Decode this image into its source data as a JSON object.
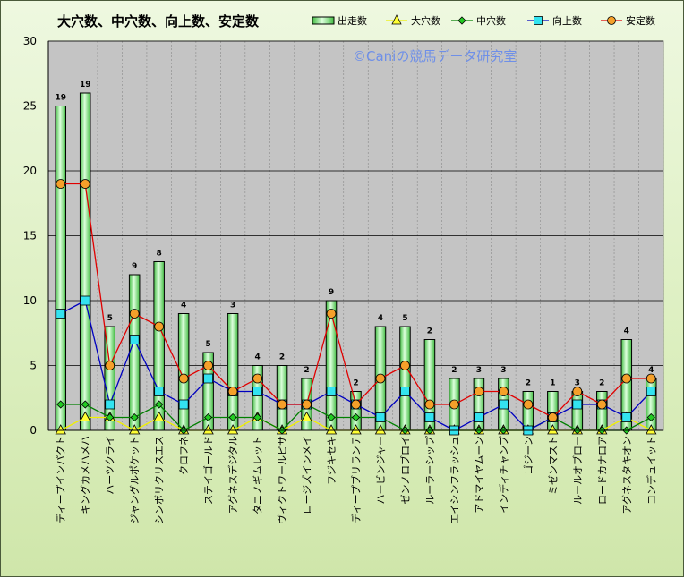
{
  "chart_data": {
    "type": "bar",
    "title": "大穴数、中穴数、向上数、安定数",
    "watermark": "©Caniの競馬データ研究室",
    "ylim": [
      0,
      30
    ],
    "yticks": [
      0,
      5,
      10,
      15,
      20,
      25,
      30
    ],
    "grid": true,
    "legend_position": "top-right",
    "categories": [
      "ディープインパクト",
      "キングカメハメハ",
      "ハーツクライ",
      "ジャングルポケット",
      "シンボリクリスエス",
      "クロフネ",
      "ステイゴールド",
      "アグネスデジタル",
      "タニノギムレット",
      "ヴィクトワールピサ",
      "ロージズインメイ",
      "フジキセキ",
      "ディープブリランテ",
      "ハービンジャー",
      "ゼンノロブロイ",
      "ルーラーシップ",
      "エイシンフラッシュ",
      "アドマイヤムーン",
      "インディチャンプ",
      "ゴジーン",
      "ミゼンマスト",
      "ルールオブロー",
      "ロードカナロア",
      "アグネスタキオン",
      "コンデュイット"
    ],
    "series": [
      {
        "name": "出走数",
        "kind": "bar",
        "color": "#5ad25a",
        "values": [
          25,
          26,
          8,
          12,
          13,
          9,
          6,
          9,
          5,
          5,
          4,
          10,
          3,
          8,
          8,
          7,
          4,
          4,
          4,
          3,
          3,
          3,
          3,
          7,
          4
        ]
      },
      {
        "name": "大穴数",
        "kind": "line",
        "color": "#f0f000",
        "marker": "triangle",
        "values": [
          0,
          1,
          1,
          0,
          1,
          0,
          0,
          0,
          1,
          0,
          1,
          0,
          0,
          0,
          0,
          0,
          0,
          0,
          0,
          0,
          0,
          0,
          0,
          1,
          0
        ]
      },
      {
        "name": "中穴数",
        "kind": "line",
        "color": "#008000",
        "marker": "diamond",
        "values": [
          2,
          2,
          1,
          1,
          2,
          0,
          1,
          1,
          1,
          0,
          2,
          1,
          1,
          1,
          0,
          0,
          0,
          0,
          0,
          0,
          1,
          0,
          0,
          0,
          1
        ]
      },
      {
        "name": "向上数",
        "kind": "line",
        "color": "#0000c0",
        "marker": "square",
        "values": [
          9,
          10,
          2,
          7,
          3,
          2,
          4,
          3,
          3,
          2,
          2,
          3,
          2,
          1,
          3,
          1,
          0,
          1,
          2,
          0,
          1,
          2,
          2,
          1,
          3
        ]
      },
      {
        "name": "安定数",
        "kind": "line",
        "color": "#e00000",
        "marker": "circle",
        "labels": true,
        "values": [
          19,
          19,
          5,
          9,
          8,
          4,
          5,
          3,
          4,
          2,
          2,
          9,
          2,
          4,
          5,
          2,
          2,
          3,
          3,
          2,
          1,
          3,
          2,
          4,
          4
        ]
      }
    ]
  }
}
